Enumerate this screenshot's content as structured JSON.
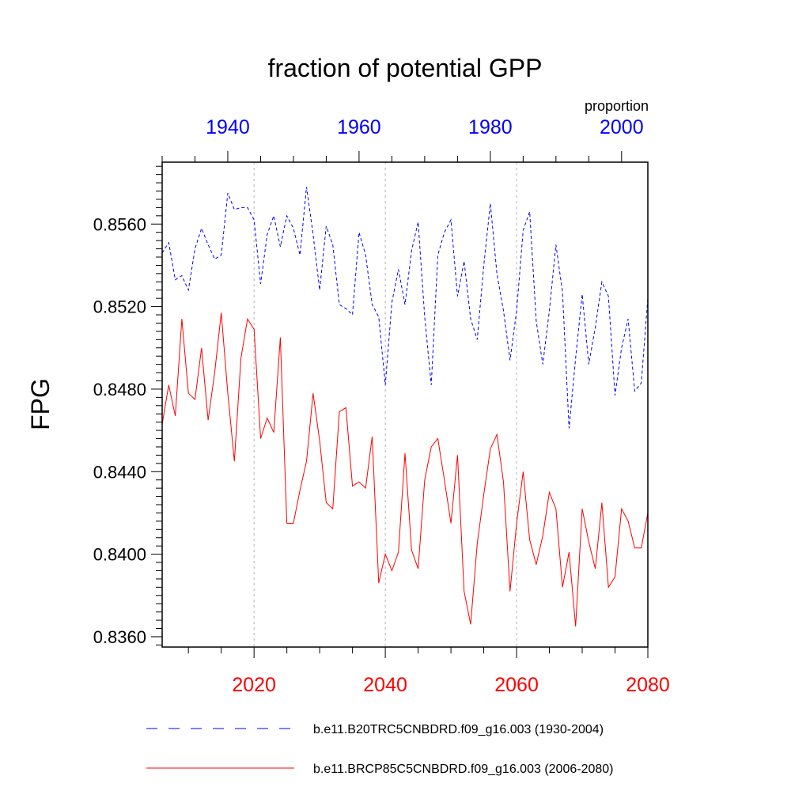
{
  "chart_data": {
    "type": "line",
    "title": "fraction of potential GPP",
    "ylabel": "FPG",
    "top_axis_unit_label": "proportion",
    "ylim": [
      0.8355,
      0.859
    ],
    "y_ticks": [
      "0.8360",
      "0.8400",
      "0.8440",
      "0.8480",
      "0.8520",
      "0.8560"
    ],
    "bottom_axis": {
      "range": [
        2006,
        2080
      ],
      "ticks": [
        "2020",
        "2040",
        "2060",
        "2080"
      ],
      "color": "#ff0000"
    },
    "top_axis": {
      "range": [
        1930,
        2004
      ],
      "ticks": [
        "1940",
        "1960",
        "1980",
        "2000"
      ],
      "color": "#0000ff"
    },
    "gridlines_at": [
      2020,
      2040,
      2060
    ],
    "series": [
      {
        "name": "b.e11.B20TRC5CNBDRD.f09_g16.003 (1930-2004)",
        "color": "#0000ff",
        "dashed": true,
        "x_start": 1930,
        "values": [
          0.8546,
          0.8551,
          0.8533,
          0.8535,
          0.8528,
          0.8548,
          0.8558,
          0.855,
          0.8543,
          0.8545,
          0.8575,
          0.8567,
          0.8568,
          0.8568,
          0.8562,
          0.8531,
          0.8555,
          0.8564,
          0.8549,
          0.8564,
          0.8558,
          0.8545,
          0.8578,
          0.8555,
          0.8528,
          0.8559,
          0.855,
          0.8521,
          0.8519,
          0.8516,
          0.8556,
          0.8545,
          0.8521,
          0.8515,
          0.8482,
          0.8522,
          0.8538,
          0.8521,
          0.8547,
          0.8561,
          0.8515,
          0.8482,
          0.8545,
          0.8556,
          0.8562,
          0.8525,
          0.8542,
          0.8514,
          0.8504,
          0.854,
          0.857,
          0.8536,
          0.8518,
          0.8494,
          0.8518,
          0.8557,
          0.8566,
          0.8513,
          0.8492,
          0.8518,
          0.855,
          0.8527,
          0.8461,
          0.8495,
          0.8526,
          0.8492,
          0.851,
          0.8532,
          0.8525,
          0.8477,
          0.85,
          0.8514,
          0.8479,
          0.8483,
          0.8524
        ]
      },
      {
        "name": "b.e11.BRCP85C5CNBDRD.f09_g16.003 (2006-2080)",
        "color": "#ff0000",
        "dashed": false,
        "x_start": 2006,
        "values": [
          0.8463,
          0.8482,
          0.8467,
          0.8514,
          0.8478,
          0.8475,
          0.85,
          0.8465,
          0.8488,
          0.8517,
          0.8478,
          0.8445,
          0.8495,
          0.8514,
          0.8509,
          0.8456,
          0.8466,
          0.8459,
          0.8505,
          0.8415,
          0.8415,
          0.8431,
          0.8445,
          0.8478,
          0.8455,
          0.8425,
          0.8422,
          0.8469,
          0.8471,
          0.8433,
          0.8435,
          0.8432,
          0.8457,
          0.8386,
          0.84,
          0.8392,
          0.8401,
          0.8449,
          0.8402,
          0.8393,
          0.8436,
          0.8452,
          0.8456,
          0.8436,
          0.8415,
          0.8448,
          0.8382,
          0.8366,
          0.8405,
          0.8429,
          0.8451,
          0.8458,
          0.8435,
          0.8382,
          0.8415,
          0.844,
          0.8407,
          0.8395,
          0.8409,
          0.843,
          0.8422,
          0.8384,
          0.8401,
          0.8365,
          0.8422,
          0.8406,
          0.8393,
          0.8425,
          0.8384,
          0.8389,
          0.8422,
          0.8416,
          0.8403,
          0.8403,
          0.842
        ]
      }
    ],
    "legend_position": "bottom"
  }
}
